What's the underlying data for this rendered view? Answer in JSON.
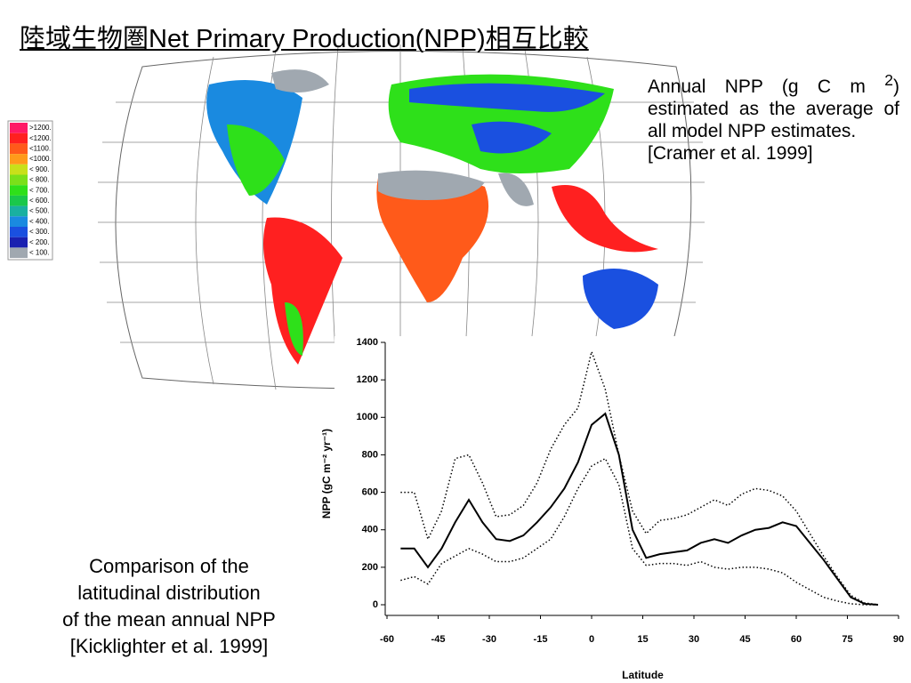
{
  "title": "陸域生物圏Net Primary Production(NPP)相互比較",
  "map_legend": [
    {
      "label": ">1200.",
      "color": "#ff1a66"
    },
    {
      "label": "<1200.",
      "color": "#ff2020"
    },
    {
      "label": "<1100.",
      "color": "#ff5a1a"
    },
    {
      "label": "<1000.",
      "color": "#ff9a1a"
    },
    {
      "label": "< 900.",
      "color": "#c8e01a"
    },
    {
      "label": "< 800.",
      "color": "#7ae01a"
    },
    {
      "label": "< 700.",
      "color": "#2ee01a"
    },
    {
      "label": "< 600.",
      "color": "#1ac84a"
    },
    {
      "label": "< 500.",
      "color": "#1ab0a0"
    },
    {
      "label": "< 400.",
      "color": "#1a8ae0"
    },
    {
      "label": "< 300.",
      "color": "#1a50e0"
    },
    {
      "label": "< 200.",
      "color": "#1a20b0"
    },
    {
      "label": "< 100.",
      "color": "#a0a8b0"
    }
  ],
  "annotation_top": {
    "before": "Annual NPP (g C m ",
    "sup": "2",
    "after": ") estimated as the average of all model NPP estimates.",
    "ref": "[Cramer et al. 1999]"
  },
  "annotation_bottom": [
    "Comparison of the",
    "latitudinal distribution",
    "of the mean annual NPP",
    "[Kicklighter et al. 1999]"
  ],
  "chart_data": {
    "type": "line",
    "xlabel": "Latitude",
    "ylabel": "NPP (gC m⁻² yr⁻¹)",
    "x": [
      -56,
      -52,
      -48,
      -44,
      -40,
      -36,
      -32,
      -28,
      -24,
      -20,
      -16,
      -12,
      -8,
      -4,
      0,
      4,
      8,
      12,
      16,
      20,
      24,
      28,
      32,
      36,
      40,
      44,
      48,
      52,
      56,
      60,
      64,
      68,
      72,
      76,
      80,
      84
    ],
    "series": [
      {
        "color": "#000000",
        "dash": "solid",
        "values": [
          300,
          300,
          200,
          300,
          440,
          560,
          440,
          350,
          340,
          370,
          440,
          520,
          620,
          760,
          960,
          1020,
          800,
          400,
          250,
          270,
          280,
          290,
          330,
          350,
          330,
          370,
          400,
          410,
          440,
          420,
          330,
          240,
          140,
          40,
          5,
          0
        ]
      },
      {
        "color": "#000000",
        "dash": "dotted",
        "values": [
          600,
          600,
          350,
          500,
          780,
          800,
          650,
          470,
          480,
          530,
          650,
          830,
          960,
          1050,
          1350,
          1150,
          800,
          500,
          380,
          450,
          460,
          480,
          520,
          560,
          530,
          590,
          620,
          610,
          580,
          500,
          380,
          260,
          150,
          50,
          10,
          0
        ]
      },
      {
        "color": "#000000",
        "dash": "dotted",
        "values": [
          130,
          150,
          110,
          220,
          260,
          300,
          270,
          230,
          230,
          250,
          300,
          350,
          470,
          620,
          740,
          780,
          640,
          300,
          210,
          220,
          220,
          210,
          230,
          200,
          190,
          200,
          200,
          190,
          170,
          120,
          80,
          40,
          20,
          5,
          0,
          0
        ]
      }
    ],
    "xlim": [
      -60,
      90
    ],
    "xticks": [
      -60,
      -45,
      -30,
      -15,
      0,
      15,
      30,
      45,
      60,
      75,
      90
    ],
    "ylim": [
      0,
      1400
    ],
    "yticks": [
      0,
      200,
      400,
      600,
      800,
      1000,
      1200,
      1400
    ]
  }
}
